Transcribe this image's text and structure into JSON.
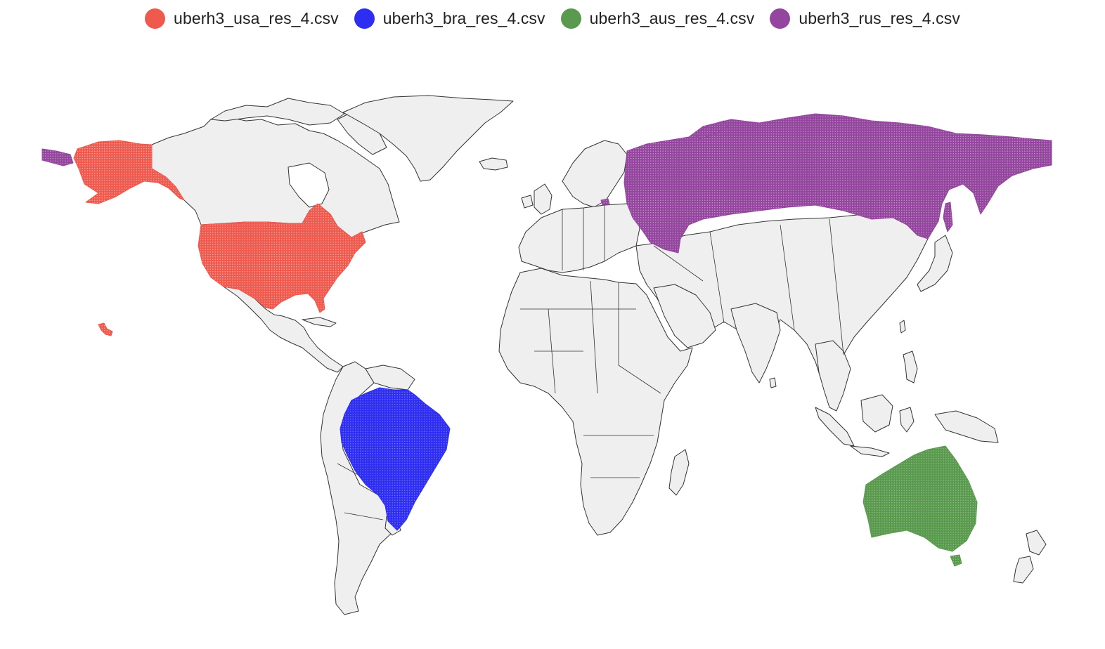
{
  "legend": {
    "items": [
      {
        "id": "usa",
        "label": "uberh3_usa_res_4.csv",
        "color": "#EF5A4E"
      },
      {
        "id": "bra",
        "label": "uberh3_bra_res_4.csv",
        "color": "#2E2EF2"
      },
      {
        "id": "aus",
        "label": "uberh3_aus_res_4.csv",
        "color": "#5A9A4E"
      },
      {
        "id": "rus",
        "label": "uberh3_rus_res_4.csv",
        "color": "#94469E"
      }
    ]
  },
  "map": {
    "land_color": "#EFEFEF",
    "border_color": "#333333",
    "highlighted_regions": [
      "usa",
      "bra",
      "aus",
      "rus"
    ]
  }
}
